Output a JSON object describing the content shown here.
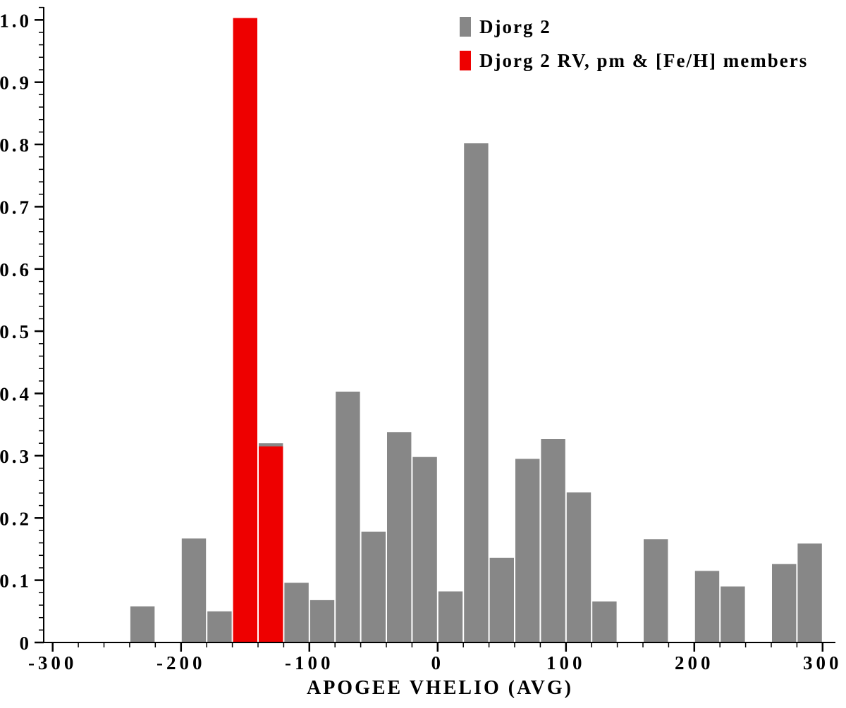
{
  "figure": {
    "background": "#ffffff",
    "axis_color": "#000000"
  },
  "chart_data": {
    "type": "bar",
    "subtype": "histogram",
    "title": "",
    "xlabel": "APOGEE VHELIO (AVG)",
    "ylabel": "",
    "xlim": [
      -307,
      310
    ],
    "ylim": [
      0,
      1.02
    ],
    "bin_width": 20,
    "grid": false,
    "legend_position": "top-right",
    "xticks": [
      -300,
      -200,
      -100,
      0,
      100,
      200,
      300
    ],
    "xtick_labels": [
      "-300",
      "-200",
      "-100",
      "0",
      "100",
      "200",
      "300"
    ],
    "yticks": [
      0,
      0.1,
      0.2,
      0.3,
      0.4,
      0.5,
      0.6,
      0.7,
      0.8,
      0.9,
      1.0
    ],
    "ytick_labels": [
      "0",
      "0.1",
      "0.2",
      "0.3",
      "0.4",
      "0.5",
      "0.6",
      "0.7",
      "0.8",
      "0.9",
      "1.0"
    ],
    "minor_x_step": 20,
    "minor_y_step": 0.02,
    "series": [
      {
        "name": "Djorg 2",
        "color": "#878787",
        "bins": [
          [
            -240,
            0.058
          ],
          [
            -200,
            0.167
          ],
          [
            -180,
            0.05
          ],
          [
            -140,
            0.32
          ],
          [
            -120,
            0.096
          ],
          [
            -100,
            0.068
          ],
          [
            -80,
            0.403
          ],
          [
            -60,
            0.178
          ],
          [
            -40,
            0.338
          ],
          [
            -20,
            0.298
          ],
          [
            0,
            0.082
          ],
          [
            20,
            0.802
          ],
          [
            40,
            0.136
          ],
          [
            60,
            0.295
          ],
          [
            80,
            0.327
          ],
          [
            100,
            0.241
          ],
          [
            120,
            0.066
          ],
          [
            160,
            0.166
          ],
          [
            200,
            0.115
          ],
          [
            220,
            0.09
          ],
          [
            260,
            0.126
          ],
          [
            280,
            0.159
          ]
        ]
      },
      {
        "name": "Djorg 2 RV, pm & [Fe/H] members",
        "color": "#ee0000",
        "bins": [
          [
            -160,
            1.003
          ],
          [
            -140,
            0.315
          ]
        ]
      }
    ]
  }
}
